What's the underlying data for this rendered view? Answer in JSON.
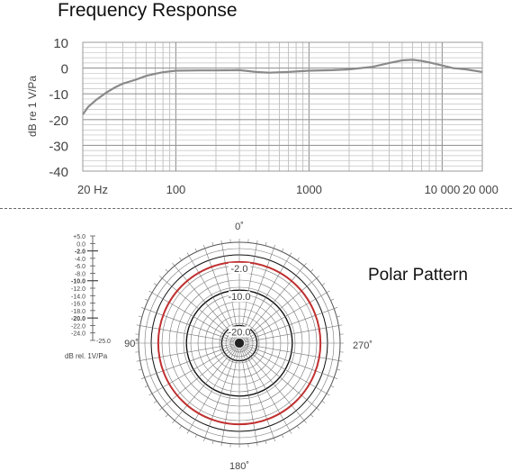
{
  "chart_data": [
    {
      "type": "line",
      "title": "Frequency Response",
      "ylabel": "dB re 1 V/Pa",
      "xscale": "log",
      "xlim": [
        20,
        20000
      ],
      "ylim": [
        -40,
        10
      ],
      "grid": true,
      "yticks": [
        10,
        0,
        -10,
        -20,
        -30,
        -40
      ],
      "ytick_labels": [
        "10",
        "0",
        "-10",
        "-20",
        "-30",
        "-40"
      ],
      "xticks": [
        20,
        100,
        1000,
        10000,
        20000
      ],
      "xtick_labels": [
        "20 Hz",
        "100",
        "1000",
        "10 000",
        "20 000"
      ],
      "series": [
        {
          "color": "#8a8a8a",
          "x": [
            20,
            22,
            25,
            30,
            35,
            40,
            50,
            60,
            70,
            80,
            100,
            150,
            200,
            300,
            400,
            500,
            700,
            1000,
            1500,
            2000,
            3000,
            4000,
            5000,
            6000,
            7000,
            8000,
            10000,
            12000,
            15000,
            20000
          ],
          "y": [
            -18,
            -15,
            -12.5,
            -9.5,
            -7.5,
            -6,
            -4.5,
            -3,
            -2.2,
            -1.6,
            -1,
            -0.9,
            -0.9,
            -0.8,
            -1.5,
            -1.8,
            -1.5,
            -1,
            -0.8,
            -0.5,
            0.5,
            2.0,
            3.0,
            3.2,
            2.8,
            2.2,
            1.0,
            0,
            -0.5,
            -1.5
          ]
        }
      ]
    },
    {
      "type": "polar",
      "title": "Polar Pattern",
      "ylabel": "dB rel. 1V/Pa",
      "angle_labels": [
        "0˚",
        "90˚",
        "180˚",
        "270˚"
      ],
      "ring_labels": [
        "-2.0",
        "-10.0",
        "-20.0"
      ],
      "scale_ticks": [
        "+5.0",
        "0.0",
        "-2.0",
        "-4.0",
        "-6.0",
        "-8.0",
        "-10.0",
        "-12.0",
        "-14.0",
        "-16.0",
        "-18.0",
        "-20.0",
        "-22.0",
        "-24.0",
        "-25.0"
      ],
      "pattern_color": "#c03030",
      "series": [
        {
          "name": "",
          "angles_deg": [
            0,
            30,
            60,
            90,
            120,
            150,
            180,
            210,
            240,
            270,
            300,
            330,
            360
          ],
          "level_db": [
            -2,
            -2,
            -2,
            -2,
            -2,
            -2,
            -2,
            -2,
            -2,
            -2,
            -2,
            -2,
            -2
          ]
        }
      ]
    }
  ]
}
